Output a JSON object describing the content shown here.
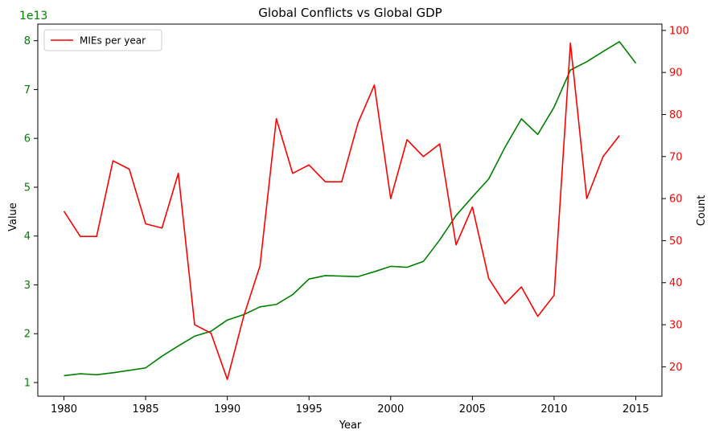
{
  "chart_data": {
    "type": "line",
    "title": "Global Conflicts vs Global GDP",
    "xlabel": "Year",
    "ylabel_left": "Value",
    "ylabel_right": "Count",
    "left_offset_label": "1e13",
    "left_scale": 10000000000000.0,
    "xlim": [
      1978.4,
      2016.6
    ],
    "ylim_left": [
      0.0,
      83000000000000.0
    ],
    "ylim_left_display": [
      0.72,
      8.34
    ],
    "ylim_right": [
      13.0,
      101.5
    ],
    "x_ticks": [
      1980,
      1985,
      1990,
      1995,
      2000,
      2005,
      2010,
      2015
    ],
    "y_left_ticks": [
      1,
      2,
      3,
      4,
      5,
      6,
      7,
      8
    ],
    "y_right_ticks": [
      20,
      30,
      40,
      50,
      60,
      70,
      80,
      90,
      100
    ],
    "grid": false,
    "legend_position": "upper-left",
    "series": [
      {
        "name": "",
        "axis": "left",
        "color": "#008000",
        "x": [
          1980,
          1981,
          1982,
          1983,
          1984,
          1985,
          1986,
          1987,
          1988,
          1989,
          1990,
          1991,
          1992,
          1993,
          1994,
          1995,
          1996,
          1997,
          1998,
          1999,
          2000,
          2001,
          2002,
          2003,
          2004,
          2005,
          2006,
          2007,
          2008,
          2009,
          2010,
          2011,
          2012,
          2013,
          2014,
          2015
        ],
        "values": [
          1.14,
          1.18,
          1.16,
          1.2,
          1.25,
          1.3,
          1.54,
          1.75,
          1.95,
          2.05,
          2.28,
          2.39,
          2.55,
          2.6,
          2.8,
          3.12,
          3.19,
          3.18,
          3.17,
          3.27,
          3.38,
          3.36,
          3.48,
          3.92,
          4.42,
          4.8,
          5.17,
          5.82,
          6.4,
          6.08,
          6.64,
          7.4,
          7.57,
          7.78,
          7.98,
          7.54
        ]
      },
      {
        "name": "MIEs per year",
        "axis": "right",
        "color": "#ff0000",
        "x": [
          1980,
          1981,
          1982,
          1983,
          1984,
          1985,
          1986,
          1987,
          1988,
          1989,
          1990,
          1991,
          1992,
          1993,
          1994,
          1995,
          1996,
          1997,
          1998,
          1999,
          2000,
          2001,
          2002,
          2003,
          2004,
          2005,
          2006,
          2007,
          2008,
          2009,
          2010,
          2011,
          2012,
          2013,
          2014
        ],
        "values": [
          57,
          51,
          51,
          69,
          67,
          54,
          53,
          66,
          30,
          28,
          17,
          32,
          44,
          79,
          66,
          68,
          64,
          64,
          78,
          87,
          60,
          74,
          70,
          73,
          49,
          58,
          41,
          35,
          39,
          32,
          37,
          97,
          60,
          70,
          75
        ]
      }
    ]
  }
}
